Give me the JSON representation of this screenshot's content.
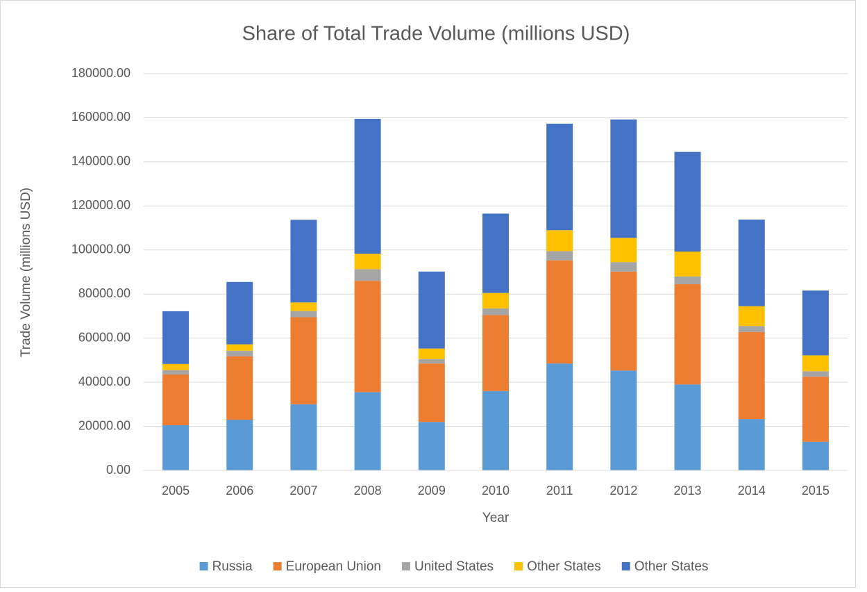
{
  "chart_data": {
    "type": "stacked_bar",
    "title": "Share of Total Trade Volume (millions USD)",
    "x_label": "Year",
    "y_label": "Trade Volume (millions USD)",
    "categories": [
      "2005",
      "2006",
      "2007",
      "2008",
      "2009",
      "2010",
      "2011",
      "2012",
      "2013",
      "2014",
      "2015"
    ],
    "series": [
      {
        "name": "Russia",
        "color": "#5b9bd5",
        "values": [
          20500,
          23000,
          30000,
          35500,
          22000,
          36000,
          48500,
          45300,
          39000,
          23300,
          13000
        ]
      },
      {
        "name": "European Union",
        "color": "#ed7d31",
        "values": [
          23000,
          28800,
          39500,
          50500,
          26500,
          34500,
          46800,
          44900,
          45500,
          39500,
          29500
        ]
      },
      {
        "name": "United States",
        "color": "#a5a5a5",
        "values": [
          2000,
          2500,
          2800,
          5300,
          2000,
          3000,
          4200,
          4300,
          3500,
          2700,
          2500
        ]
      },
      {
        "name": "Other States",
        "color": "#ffc000",
        "values": [
          2800,
          2900,
          3900,
          7000,
          4800,
          7000,
          9500,
          11000,
          11300,
          9000,
          7200
        ]
      },
      {
        "name": "Other States",
        "color": "#4472c4",
        "values": [
          23900,
          28300,
          37500,
          61200,
          34900,
          36000,
          48300,
          53700,
          45200,
          39300,
          29400
        ]
      }
    ],
    "ylim": [
      0,
      180000
    ],
    "yticks": [
      {
        "value": 0,
        "label": "0.00"
      },
      {
        "value": 20000,
        "label": "20000.00"
      },
      {
        "value": 40000,
        "label": "40000.00"
      },
      {
        "value": 60000,
        "label": "60000.00"
      },
      {
        "value": 80000,
        "label": "80000.00"
      },
      {
        "value": 100000,
        "label": "100000.00"
      },
      {
        "value": 120000,
        "label": "120000.00"
      },
      {
        "value": 140000,
        "label": "140000.00"
      },
      {
        "value": 160000,
        "label": "160000.00"
      },
      {
        "value": 180000,
        "label": "180000.00"
      }
    ],
    "grid": true,
    "legend": "bottom"
  }
}
